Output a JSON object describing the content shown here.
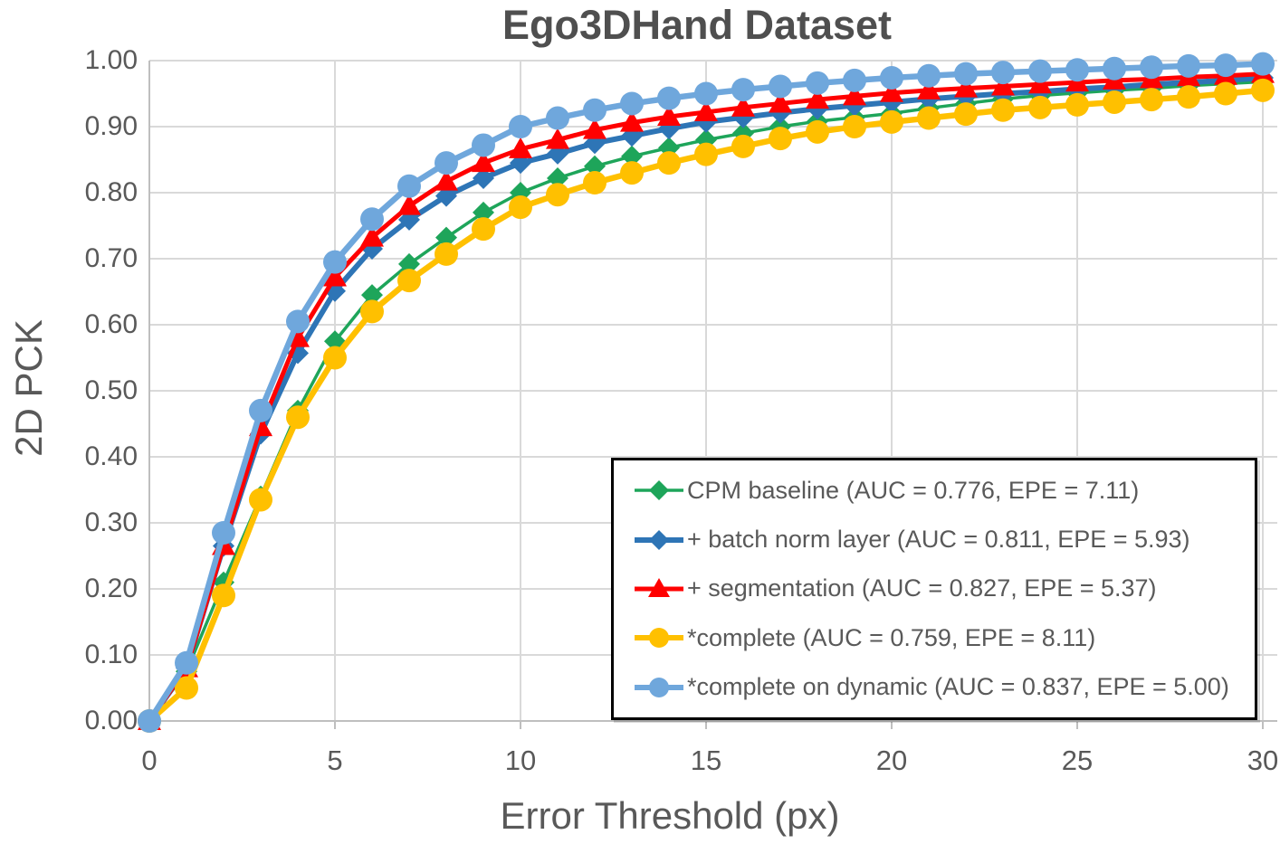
{
  "chart_data": {
    "type": "line",
    "title": "Ego3DHand Dataset",
    "xlabel": "Error Threshold (px)",
    "ylabel": "2D PCK",
    "xlim": [
      0,
      30
    ],
    "ylim": [
      0.0,
      1.0
    ],
    "grid": true,
    "legend_position": "inside-bottom-right",
    "x_ticks": [
      0,
      5,
      10,
      15,
      20,
      25,
      30
    ],
    "x_tick_labels": [
      "0",
      "5",
      "10",
      "15",
      "20",
      "25",
      "30"
    ],
    "y_ticks": [
      0.0,
      0.1,
      0.2,
      0.3,
      0.4,
      0.5,
      0.6,
      0.7,
      0.8,
      0.9,
      1.0
    ],
    "y_tick_labels": [
      "0.00",
      "0.10",
      "0.20",
      "0.30",
      "0.40",
      "0.50",
      "0.60",
      "0.70",
      "0.80",
      "0.90",
      "1.00"
    ],
    "x": [
      0,
      1,
      2,
      3,
      4,
      5,
      6,
      7,
      8,
      9,
      10,
      11,
      12,
      13,
      14,
      15,
      16,
      17,
      18,
      19,
      20,
      21,
      22,
      23,
      24,
      25,
      26,
      27,
      28,
      29,
      30
    ],
    "series": [
      {
        "name": "CPM baseline (AUC = 0.776, EPE = 7.11)",
        "marker": "diamond",
        "color": "#1EA55A",
        "line_width": 3.5,
        "values": [
          0.0,
          0.075,
          0.21,
          0.34,
          0.47,
          0.575,
          0.645,
          0.692,
          0.732,
          0.77,
          0.8,
          0.822,
          0.84,
          0.855,
          0.868,
          0.88,
          0.89,
          0.9,
          0.908,
          0.914,
          0.92,
          0.928,
          0.935,
          0.942,
          0.947,
          0.951,
          0.955,
          0.958,
          0.962,
          0.965,
          0.968
        ]
      },
      {
        "name": "+ batch norm layer (AUC = 0.811, EPE = 5.93)",
        "marker": "diamond",
        "color": "#2E75B6",
        "line_width": 6,
        "values": [
          0.0,
          0.08,
          0.265,
          0.435,
          0.557,
          0.651,
          0.715,
          0.759,
          0.795,
          0.822,
          0.845,
          0.859,
          0.875,
          0.886,
          0.897,
          0.907,
          0.914,
          0.921,
          0.927,
          0.932,
          0.937,
          0.942,
          0.946,
          0.95,
          0.953,
          0.957,
          0.96,
          0.964,
          0.967,
          0.97,
          0.974
        ]
      },
      {
        "name": "+ segmentation (AUC = 0.827, EPE = 5.37)",
        "marker": "triangle",
        "color": "#FF0000",
        "line_width": 5,
        "values": [
          0.0,
          0.08,
          0.265,
          0.445,
          0.58,
          0.672,
          0.732,
          0.78,
          0.817,
          0.845,
          0.866,
          0.88,
          0.895,
          0.906,
          0.915,
          0.922,
          0.929,
          0.935,
          0.941,
          0.946,
          0.951,
          0.955,
          0.958,
          0.961,
          0.964,
          0.967,
          0.97,
          0.972,
          0.975,
          0.977,
          0.98
        ]
      },
      {
        "name": "*complete (AUC = 0.759, EPE = 8.11)",
        "marker": "circle",
        "color": "#FFC000",
        "line_width": 6.5,
        "values": [
          0.0,
          0.05,
          0.19,
          0.335,
          0.46,
          0.55,
          0.62,
          0.667,
          0.707,
          0.745,
          0.778,
          0.797,
          0.815,
          0.83,
          0.845,
          0.858,
          0.87,
          0.882,
          0.892,
          0.9,
          0.907,
          0.913,
          0.919,
          0.925,
          0.929,
          0.933,
          0.937,
          0.941,
          0.945,
          0.95,
          0.955
        ]
      },
      {
        "name": "*complete on dynamic (AUC = 0.837, EPE = 5.00)",
        "marker": "circle",
        "color": "#6FA7DC",
        "line_width": 6.5,
        "values": [
          0.0,
          0.088,
          0.285,
          0.47,
          0.605,
          0.695,
          0.76,
          0.81,
          0.845,
          0.872,
          0.9,
          0.913,
          0.925,
          0.935,
          0.943,
          0.95,
          0.956,
          0.961,
          0.966,
          0.97,
          0.974,
          0.977,
          0.98,
          0.982,
          0.984,
          0.986,
          0.988,
          0.99,
          0.992,
          0.993,
          0.995
        ]
      }
    ]
  },
  "colors": {
    "background": "#FFFFFF",
    "gridline": "#D9D9D9",
    "axis_line": "#BFBFBF",
    "text": "#595959",
    "legend_border": "#000000"
  }
}
